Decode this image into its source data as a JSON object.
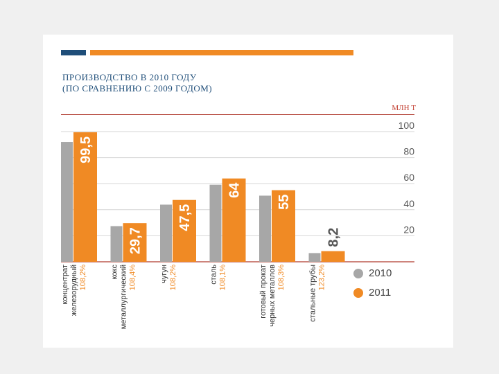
{
  "header": {
    "title_line1": "ПРОИЗВОДСТВО В 2010 ГОДУ",
    "title_line2": "(ПО СРАВНЕНИЮ С 2009 ГОДОМ)",
    "unit": "МЛН Т"
  },
  "colors": {
    "y2010": "#a7a7a7",
    "y2011": "#f08a24",
    "accent_blue": "#1f4e79",
    "percent_text": "#f08a24"
  },
  "legend": [
    {
      "label": "2010",
      "color": "#a7a7a7"
    },
    {
      "label": "2011",
      "color": "#f08a24"
    }
  ],
  "chart_data": {
    "type": "bar",
    "ylim": [
      0,
      100
    ],
    "yticks": [
      "100",
      "80",
      "60",
      "40",
      "20"
    ],
    "grid": true,
    "legend_position": "bottom-right",
    "categories": [
      {
        "lines": [
          "концентрат",
          "железорудный"
        ],
        "percent": "108,2%"
      },
      {
        "lines": [
          "кокс",
          "металлургический"
        ],
        "percent": "108,4%"
      },
      {
        "lines": [
          "чугун"
        ],
        "percent": "108,2%"
      },
      {
        "lines": [
          "сталь"
        ],
        "percent": "108,1%"
      },
      {
        "lines": [
          "готовый прокат",
          "черных металлов"
        ],
        "percent": "108,3%"
      },
      {
        "lines": [
          "стальные трубы"
        ],
        "percent": "123,2%"
      }
    ],
    "series": [
      {
        "name": "2010",
        "values": [
          92,
          27.4,
          43.9,
          59.2,
          50.8,
          6.7
        ]
      },
      {
        "name": "2011",
        "values": [
          99.5,
          29.7,
          47.5,
          64,
          55,
          8.2
        ]
      }
    ],
    "value_labels": [
      "99,5",
      "29,7",
      "47,5",
      "64",
      "55",
      "8,2"
    ]
  }
}
